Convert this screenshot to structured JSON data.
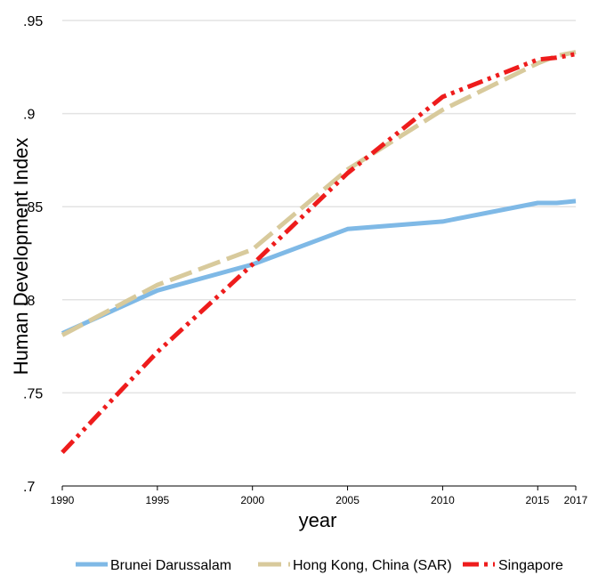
{
  "chart_data": {
    "type": "line",
    "title": "",
    "xlabel": "year",
    "ylabel": "Human Development Index",
    "x_ticks": [
      "1990",
      "1995",
      "2000",
      "2005",
      "2010",
      "2015",
      "2017"
    ],
    "y_ticks": [
      ".7",
      ".75",
      ".8",
      ".85",
      ".9",
      ".95"
    ],
    "xlim": [
      1990,
      2017
    ],
    "ylim": [
      0.7,
      0.95
    ],
    "grid": "horizontal",
    "legend_position": "bottom",
    "series": [
      {
        "name": "Brunei Darussalam",
        "color": "#7fb9e6",
        "dash": "solid",
        "points": [
          [
            1990,
            0.782
          ],
          [
            1995,
            0.805
          ],
          [
            2000,
            0.819
          ],
          [
            2005,
            0.838
          ],
          [
            2010,
            0.842
          ],
          [
            2015,
            0.852
          ],
          [
            2016,
            0.852
          ],
          [
            2017,
            0.853
          ]
        ]
      },
      {
        "name": "Hong Kong, China (SAR)",
        "color": "#d8ca9c",
        "dash": "long-dash",
        "points": [
          [
            1990,
            0.781
          ],
          [
            1995,
            0.808
          ],
          [
            2000,
            0.827
          ],
          [
            2005,
            0.87
          ],
          [
            2010,
            0.902
          ],
          [
            2015,
            0.927
          ],
          [
            2016,
            0.931
          ],
          [
            2017,
            0.933
          ]
        ]
      },
      {
        "name": "Singapore",
        "color": "#ee1c1c",
        "dash": "dash-dot",
        "points": [
          [
            1990,
            0.718
          ],
          [
            1995,
            0.772
          ],
          [
            2000,
            0.819
          ],
          [
            2005,
            0.868
          ],
          [
            2010,
            0.909
          ],
          [
            2015,
            0.929
          ],
          [
            2016,
            0.93
          ],
          [
            2017,
            0.932
          ]
        ]
      }
    ]
  }
}
